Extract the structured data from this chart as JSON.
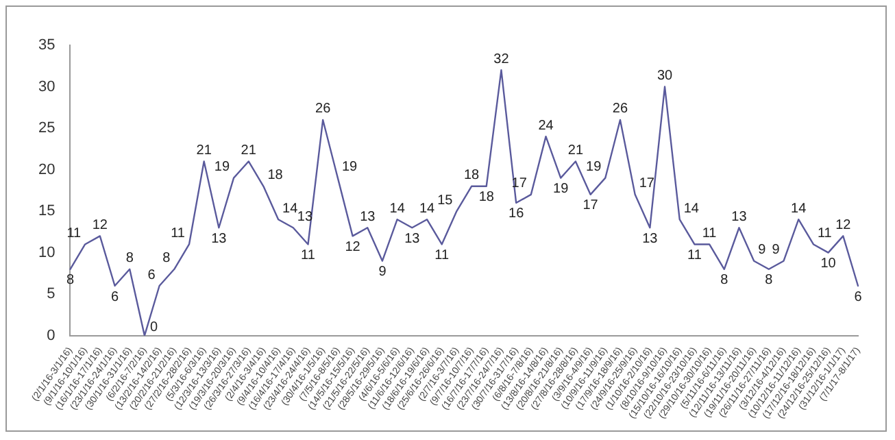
{
  "chart_data": {
    "type": "line",
    "categories": [
      "(2/1/16-3/1/16)",
      "(9/1/16-10/1/16)",
      "(16/1/16-17/1/16)",
      "(23/1/16-24/1/16)",
      "(30/1/16-31/1/16)",
      "(6/2/16-7/2/16)",
      "(13/2/16-14/2/16)",
      "(20/2/16-21/2/16)",
      "(27/2/16-28/2/16)",
      "(5/3/16-6/3/16)",
      "(12/3/16-13/3/16)",
      "(19/3/16-20/3/16)",
      "(26/3/16-27/3/16)",
      "(2/4/16-3/4/16)",
      "(9/4/16-10/4/16)",
      "(16/4/16-17/4/16)",
      "(23/4/16-24/4/16)",
      "(30/4/16-1/5/16)",
      "(7/5/16-8/5/16)",
      "(14/5/16-15/5/16)",
      "(21/5/16-22/5/16)",
      "(28/5/16-29/5/16)",
      "(4/6/16-5/6/16)",
      "(11/6/16-12/6/16)",
      "(18/6/16-19/6/16)",
      "(25/6/16-26/6/16)",
      "(2/7/16-3/7/16)",
      "(9/7/16-10/7/16)",
      "(16/7/16-17/7/16)",
      "(23/7/16-24/7/16)",
      "(30/7/16-31/7/16)",
      "(6/8/16-7/8/16)",
      "(13/8/16-14/8/16)",
      "(20/8/16-21/8/16)",
      "(27/8/16-28/8/16)",
      "(3/9/16-4/9/16)",
      "(10/9/16-11/9/16)",
      "(17/9/16-18/9/16)",
      "(24/9/16-25/9/16)",
      "(1/10/16-2/10/16)",
      "(8/10/16-9/10/16)",
      "(15/10/16-16/10/16)",
      "(22/10/16-23/10/16)",
      "(29/10/16-30/10/16)",
      "(5/11/16-6/11/16)",
      "(12/11/16-13/11/16)",
      "(19/11/16-20/11/16)",
      "(26/11/16-27/11/16)",
      "(3/12/16-4/12/16)",
      "(10/12/16-11/12/16)",
      "(17/12/16-18/12/16)",
      "(24/12/16-25/12/16)",
      "(31/12/16-1/1/17)",
      "(7/1/17-8/1/17)"
    ],
    "values": [
      8,
      11,
      12,
      6,
      8,
      0,
      6,
      8,
      11,
      21,
      13,
      19,
      21,
      18,
      14,
      13,
      11,
      26,
      19,
      12,
      13,
      9,
      14,
      13,
      14,
      11,
      15,
      18,
      18,
      32,
      16,
      17,
      24,
      19,
      21,
      17,
      19,
      26,
      17,
      13,
      30,
      14,
      11,
      11,
      8,
      13,
      9,
      8,
      9,
      14,
      11,
      10,
      12,
      6
    ],
    "color": "#5a5a9c",
    "ylim": [
      0,
      35
    ],
    "yticks": [
      0,
      5,
      10,
      15,
      20,
      25,
      30,
      35
    ],
    "grid": false,
    "legend": false,
    "marker": "none",
    "line_style": "solid",
    "data_labels": true
  }
}
